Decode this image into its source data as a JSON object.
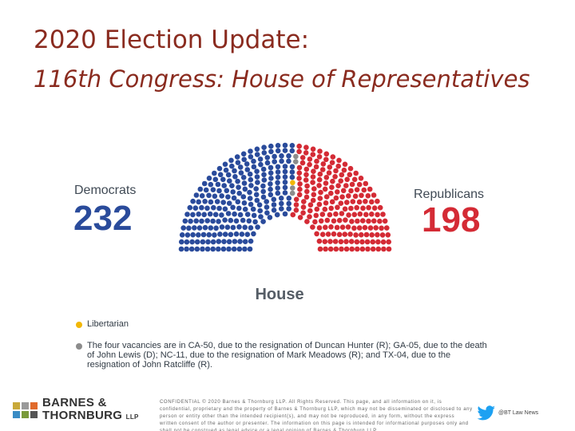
{
  "header": {
    "title": "2020 Election Update:",
    "subtitle": "116th Congress:  House of Representatives"
  },
  "chart_data": {
    "type": "hemicycle",
    "chamber_label": "House",
    "parties": [
      {
        "name": "Democrats",
        "seats": 232,
        "color": "#2a4b9b"
      },
      {
        "name": "Republicans",
        "seats": 198,
        "color": "#d42b35"
      },
      {
        "name": "Libertarian",
        "seats": 1,
        "color": "#f2b705"
      },
      {
        "name": "Vacant",
        "seats": 4,
        "color": "#8c8c8c"
      }
    ]
  },
  "legend": {
    "libertarian_label": "Libertarian",
    "vacancies_note": "The four vacancies are in CA-50, due to the resignation of Duncan Hunter (R); GA-05, due to the death of John Lewis (D); NC-11, due to the resignation of Mark Meadows (R); and TX-04, due to the resignation of John Ratcliffe (R)."
  },
  "footer": {
    "logo_line1": "BARNES &",
    "logo_line2": "THORNBURG",
    "logo_suffix": "LLP",
    "confidential_text": "CONFIDENTIAL © 2020 Barnes & Thornburg LLP. All Rights Reserved. This page, and all information on it, is confidential, proprietary and the property of Barnes & Thornburg LLP, which may not be disseminated or disclosed to any person or entity other than the intended recipient(s), and may not be reproduced, in any form, without the express written consent of the author or presenter. The information on this page is intended for informational purposes only and shall not be construed as legal advice or a legal opinion of Barnes & Thornburg LLP.",
    "twitter_handle": "@BT Law News",
    "logo_colors": [
      "#c8a93a",
      "#9a9a9a",
      "#e06a2b",
      "#3a8cc5",
      "#7a9a3a",
      "#555555"
    ]
  }
}
